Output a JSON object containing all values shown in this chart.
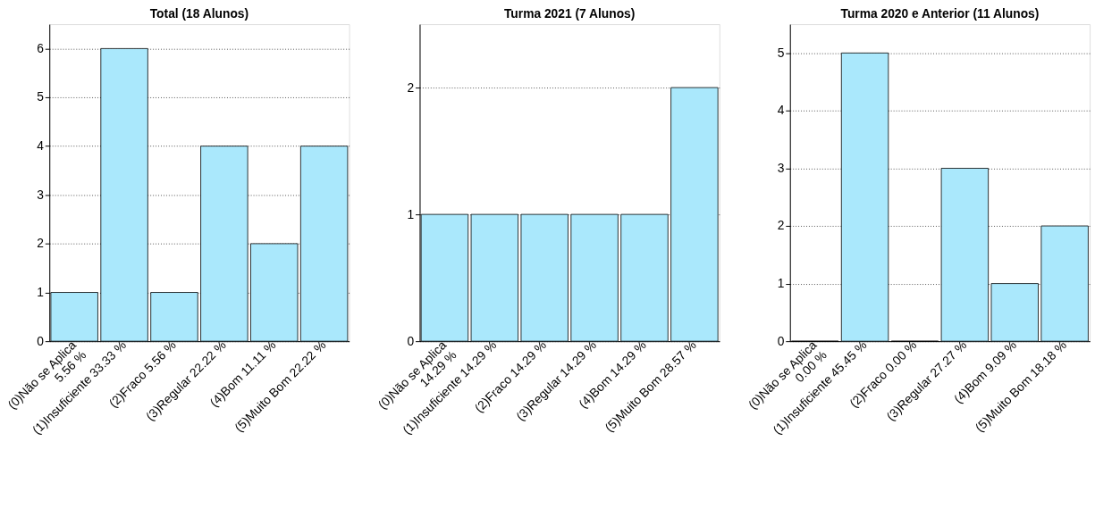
{
  "chart_data": [
    {
      "type": "bar",
      "title": "Total (18 Alunos)",
      "categories": [
        "(0)Não se Aplica\n5.56 %",
        "(1)Insuficiente 33.33 %",
        "(2)Fraco 5.56 %",
        "(3)Regular 22.22 %",
        "(4)Bom 11.11 %",
        "(5)Muito Bom 22.22 %"
      ],
      "values": [
        1,
        6,
        1,
        4,
        2,
        4
      ],
      "color": "#aae8fc",
      "ylim": [
        0,
        6.5
      ],
      "yticks": [
        0,
        1,
        2,
        3,
        4,
        5,
        6
      ],
      "grid": "y"
    },
    {
      "type": "bar",
      "title": "Turma 2021 (7 Alunos)",
      "categories": [
        "(0)Não se Aplica\n14.29 %",
        "(1)Insuficiente 14.29 %",
        "(2)Fraco 14.29 %",
        "(3)Regular 14.29 %",
        "(4)Bom 14.29 %",
        "(5)Muito Bom 28.57 %"
      ],
      "values": [
        1,
        1,
        1,
        1,
        1,
        2
      ],
      "color": "#aae8fc",
      "ylim": [
        0,
        2.5
      ],
      "yticks": [
        0,
        1,
        2
      ],
      "grid": "y"
    },
    {
      "type": "bar",
      "title": "Turma 2020 e Anterior (11 Alunos)",
      "categories": [
        "(0)Não se Aplica\n0.00 %",
        "(1)Insuficiente 45.45 %",
        "(2)Fraco 0.00 %",
        "(3)Regular 27.27 %",
        "(4)Bom 9.09 %",
        "(5)Muito Bom 18.18 %"
      ],
      "values": [
        0,
        5,
        0,
        3,
        1,
        2
      ],
      "color": "#aae8fc",
      "ylim": [
        0,
        5.5
      ],
      "yticks": [
        0,
        1,
        2,
        3,
        4,
        5
      ],
      "grid": "y"
    }
  ]
}
